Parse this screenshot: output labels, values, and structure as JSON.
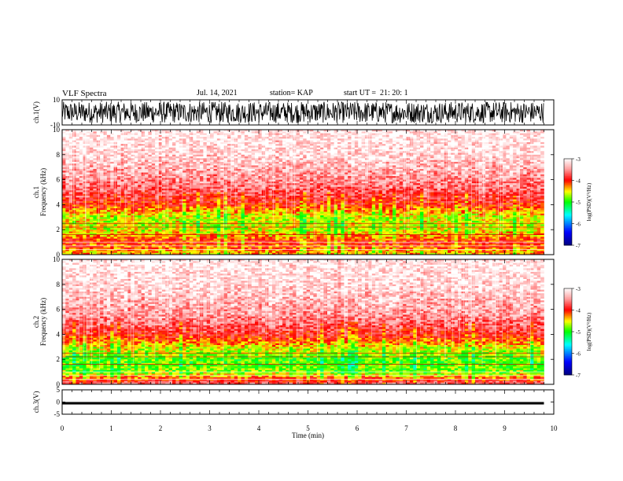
{
  "header": {
    "title": "VLF Spectra",
    "date": "Jul. 14, 2021",
    "station": "station= KAP",
    "start_ut": "start UT =  21: 20: 1"
  },
  "chart_data": [
    {
      "type": "line",
      "panel": "ch1-waveform",
      "ylabel": "ch.1(V)",
      "ylim": [
        -10,
        10
      ],
      "yticks": [
        10,
        -10
      ],
      "xlim": [
        0,
        10
      ],
      "description_values": {
        "typical_range": [
          -10,
          10
        ],
        "center": 0
      }
    },
    {
      "type": "heatmap",
      "panel": "ch1-spectrogram",
      "ylabel": "ch.1 Frequency (kHz)",
      "ylim": [
        0,
        10
      ],
      "yticks": [
        0,
        2,
        4,
        6,
        8,
        10
      ],
      "xlim": [
        0,
        10
      ],
      "data_end_min": 9.8,
      "colorbar": {
        "label": "log(PSD)(V²/Hz)",
        "range": [
          -7,
          -3
        ],
        "ticks": [
          -3,
          -4,
          -5,
          -6,
          -7
        ]
      },
      "frequency_profile_log_psd": [
        {
          "freq_khz": 0.5,
          "value": -4.2
        },
        {
          "freq_khz": 1.0,
          "value": -4.0
        },
        {
          "freq_khz": 2.0,
          "value": -4.6
        },
        {
          "freq_khz": 3.0,
          "value": -4.6
        },
        {
          "freq_khz": 4.0,
          "value": -4.0
        },
        {
          "freq_khz": 5.5,
          "value": -3.6
        },
        {
          "freq_khz": 8.0,
          "value": -3.2
        },
        {
          "freq_khz": 10.0,
          "value": -3.1
        }
      ]
    },
    {
      "type": "heatmap",
      "panel": "ch2-spectrogram",
      "ylabel": "ch.2 Frequency (kHz)",
      "ylim": [
        0,
        10
      ],
      "yticks": [
        0,
        2,
        4,
        6,
        8,
        10
      ],
      "xlim": [
        0,
        10
      ],
      "data_end_min": 9.8,
      "colorbar": {
        "label": "log(PSD)(V²/Hz)",
        "range": [
          -7,
          -3
        ],
        "ticks": [
          -3,
          -4,
          -5,
          -6,
          -7
        ]
      },
      "frequency_profile_log_psd": [
        {
          "freq_khz": 0.5,
          "value": -4.2
        },
        {
          "freq_khz": 1.0,
          "value": -4.8
        },
        {
          "freq_khz": 2.0,
          "value": -4.9
        },
        {
          "freq_khz": 3.0,
          "value": -4.5
        },
        {
          "freq_khz": 4.0,
          "value": -3.9
        },
        {
          "freq_khz": 5.5,
          "value": -3.5
        },
        {
          "freq_khz": 8.0,
          "value": -3.2
        },
        {
          "freq_khz": 10.0,
          "value": -3.1
        }
      ]
    },
    {
      "type": "line",
      "panel": "ch3-waveform",
      "ylabel": "ch.3(V)",
      "ylim": [
        -5,
        5
      ],
      "yticks": [
        5,
        0,
        -5
      ],
      "xlim": [
        0,
        10
      ],
      "description_values": {
        "typical_range": [
          -1,
          0
        ],
        "center": -0.5
      }
    }
  ],
  "xaxis": {
    "label": "Time (min)",
    "ticks": [
      "0",
      "1",
      "2",
      "3",
      "4",
      "5",
      "6",
      "7",
      "8",
      "9",
      "10"
    ]
  },
  "colors": {
    "white": "#ffffff",
    "red": "#ff0000",
    "yellow": "#ffff00",
    "green": "#00ff00",
    "cyan": "#00ffff",
    "blue": "#0000ff",
    "navy": "#000080"
  }
}
